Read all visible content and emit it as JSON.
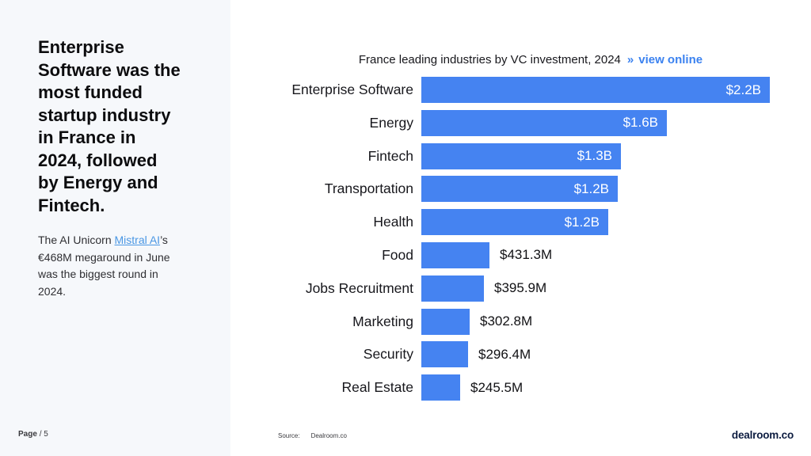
{
  "page": {
    "sidebar": {
      "background": "#f6f8fb",
      "heading": "Enterprise Software was the most funded startup industry in France in 2024, followed by Energy and Fintech.",
      "note_prefix": "The AI Unicorn ",
      "note_link": "Mistral AI",
      "note_suffix": "’s €468M megaround in June was the biggest round in 2024.",
      "page_label": "Page",
      "page_number": "/ 5"
    },
    "footer": {
      "source_label": "Source:",
      "source_value": "Dealroom.co",
      "logo": "dealroom.co"
    }
  },
  "chart_data": {
    "type": "bar",
    "orientation": "horizontal",
    "title": "France leading industries by VC investment, 2024",
    "link_arrow": "»",
    "link_label": "view online",
    "bar_color": "#4583f1",
    "unit": "USD",
    "max_value_musd": 2200,
    "categories": [
      "Enterprise Software",
      "Energy",
      "Fintech",
      "Transportation",
      "Health",
      "Food",
      "Jobs Recruitment",
      "Marketing",
      "Security",
      "Real Estate"
    ],
    "items": [
      {
        "category": "Enterprise Software",
        "value_musd": 2200,
        "label": "$2.2B",
        "label_inside": true
      },
      {
        "category": "Energy",
        "value_musd": 1550,
        "label": "$1.6B",
        "label_inside": true
      },
      {
        "category": "Fintech",
        "value_musd": 1260,
        "label": "$1.3B",
        "label_inside": true
      },
      {
        "category": "Transportation",
        "value_musd": 1240,
        "label": "$1.2B",
        "label_inside": true
      },
      {
        "category": "Health",
        "value_musd": 1180,
        "label": "$1.2B",
        "label_inside": true
      },
      {
        "category": "Food",
        "value_musd": 431.3,
        "label": "$431.3M",
        "label_inside": false
      },
      {
        "category": "Jobs Recruitment",
        "value_musd": 395.9,
        "label": "$395.9M",
        "label_inside": false
      },
      {
        "category": "Marketing",
        "value_musd": 302.8,
        "label": "$302.8M",
        "label_inside": false
      },
      {
        "category": "Security",
        "value_musd": 296.4,
        "label": "$296.4M",
        "label_inside": false
      },
      {
        "category": "Real Estate",
        "value_musd": 245.5,
        "label": "$245.5M",
        "label_inside": false
      }
    ]
  }
}
